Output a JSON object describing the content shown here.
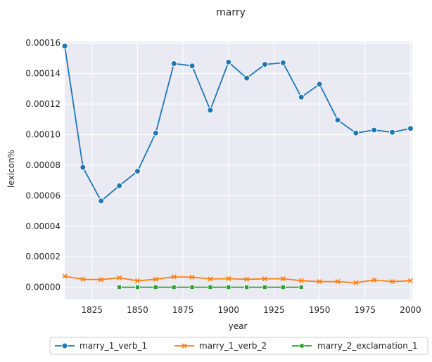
{
  "chart_data": {
    "type": "line",
    "title": "marry",
    "xlabel": "year",
    "ylabel": "lexicon%",
    "xlim": [
      1810,
      2001
    ],
    "ylim": [
      -8e-06,
      0.000161
    ],
    "xticks": [
      1825,
      1850,
      1875,
      1900,
      1925,
      1950,
      1975,
      2000
    ],
    "xtick_labels": [
      "1825",
      "1850",
      "1875",
      "1900",
      "1925",
      "1950",
      "1975",
      "2000"
    ],
    "yticks": [
      0,
      2e-05,
      4e-05,
      6e-05,
      8e-05,
      0.0001,
      0.00012,
      0.00014,
      0.00016
    ],
    "ytick_labels": [
      "0.00000",
      "0.00002",
      "0.00004",
      "0.00006",
      "0.00008",
      "0.00010",
      "0.00012",
      "0.00014",
      "0.00016"
    ],
    "grid": true,
    "legend_position": "bottom-center",
    "series": [
      {
        "name": "marry_1_verb_1",
        "color": "#1f77b4",
        "marker": "circle",
        "x": [
          1810,
          1820,
          1830,
          1840,
          1850,
          1860,
          1870,
          1880,
          1890,
          1900,
          1910,
          1920,
          1930,
          1940,
          1950,
          1960,
          1970,
          1980,
          1990,
          2000
        ],
        "y": [
          0.000158,
          7.85e-05,
          5.65e-05,
          6.65e-05,
          7.6e-05,
          0.000101,
          0.0001465,
          0.000145,
          0.000116,
          0.0001475,
          0.000137,
          0.000146,
          0.000147,
          0.0001245,
          0.000133,
          0.0001095,
          0.000101,
          0.000103,
          0.0001015,
          0.000104
        ]
      },
      {
        "name": "marry_1_verb_2",
        "color": "#ff7f0e",
        "marker": "x",
        "x": [
          1810,
          1820,
          1830,
          1840,
          1850,
          1860,
          1870,
          1880,
          1890,
          1900,
          1910,
          1920,
          1930,
          1940,
          1950,
          1960,
          1970,
          1980,
          1990,
          2000
        ],
        "y": [
          7.2e-06,
          5.2e-06,
          5e-06,
          6.2e-06,
          4.2e-06,
          5.2e-06,
          6.8e-06,
          6.6e-06,
          5.4e-06,
          5.6e-06,
          5.2e-06,
          5.5e-06,
          5.6e-06,
          4.3e-06,
          3.7e-06,
          3.7e-06,
          3e-06,
          4.7e-06,
          3.7e-06,
          4.3e-06
        ]
      },
      {
        "name": "marry_2_exclamation_1",
        "color": "#2ca02c",
        "marker": "square",
        "x": [
          1840,
          1850,
          1860,
          1870,
          1880,
          1890,
          1900,
          1910,
          1920,
          1930,
          1940
        ],
        "y": [
          0,
          0,
          0,
          0,
          0,
          0,
          0,
          0,
          0,
          0,
          0
        ]
      }
    ]
  }
}
